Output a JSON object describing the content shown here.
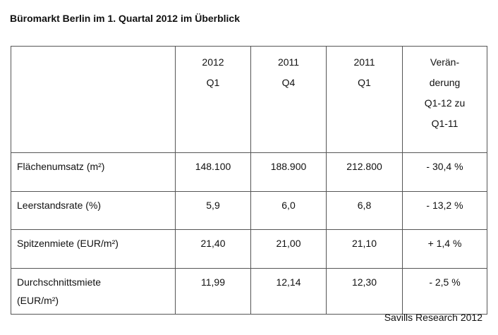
{
  "title": "Büromarkt Berlin im 1. Quartal 2012 im Überblick",
  "table": {
    "header": [
      [],
      [
        "2012",
        "Q1"
      ],
      [
        "2011",
        "Q4"
      ],
      [
        "2011",
        "Q1"
      ],
      [
        "Verän-",
        "derung",
        "Q1-12 zu",
        "Q1-11"
      ]
    ],
    "rows": [
      [
        [
          "Flächenumsatz (m²)"
        ],
        "148.100",
        "188.900",
        "212.800",
        "- 30,4 %"
      ],
      [
        [
          "Leerstandsrate (%)"
        ],
        "5,9",
        "6,0",
        "6,8",
        "- 13,2 %"
      ],
      [
        [
          "Spitzenmiete (EUR/m²)"
        ],
        "21,40",
        "21,00",
        "21,10",
        "+ 1,4 %"
      ],
      [
        [
          "Durchschnittsmiete",
          "(EUR/m²)"
        ],
        "11,99",
        "12,14",
        "12,30",
        "- 2,5 %"
      ]
    ]
  },
  "source": "Savills Research 2012"
}
